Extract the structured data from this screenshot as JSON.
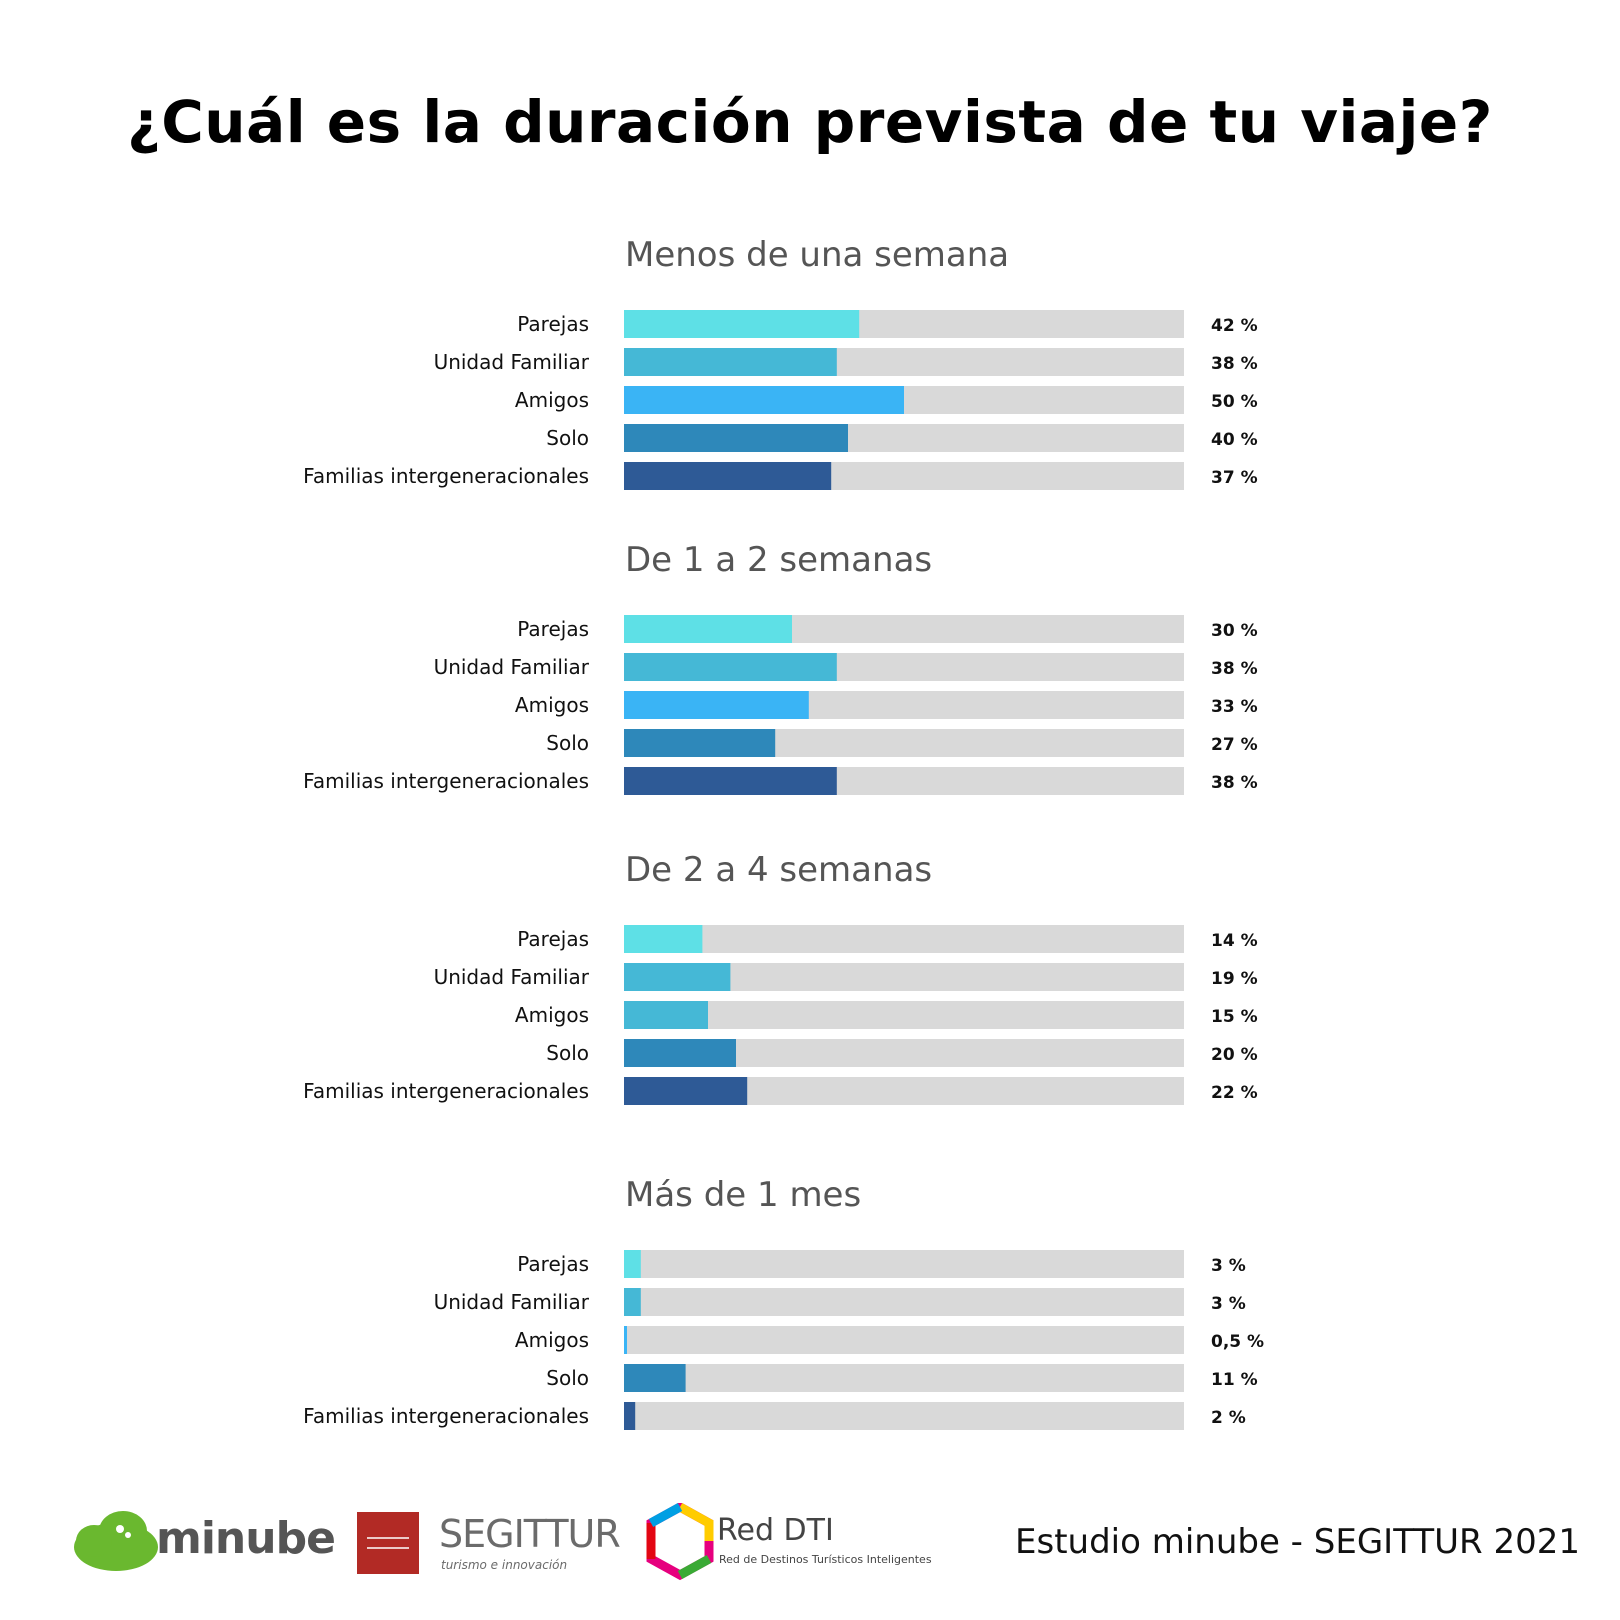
{
  "title": "¿Cuál es la duración prevista de tu viaje?",
  "colors": {
    "track": "#d9d9d9",
    "parejas": "#5ee0e6",
    "unidad_familiar": "#45b8d6",
    "amigos": "#3ab4f5",
    "solo": "#2e88ba",
    "familias": "#2e5a96",
    "section_title": "#555555"
  },
  "chart_data": {
    "type": "bar",
    "orientation": "horizontal",
    "xlim": [
      0,
      100
    ],
    "unit": "%",
    "groups": [
      {
        "name": "Menos de una semana",
        "categories": [
          "Parejas",
          "Unidad Familiar",
          "Amigos",
          "Solo",
          "Familias intergeneracionales"
        ],
        "values": [
          42,
          38,
          50,
          40,
          37
        ],
        "labels": [
          "42 %",
          "38 %",
          "50 %",
          "40 %",
          "37 %"
        ],
        "colors": [
          "#5ee0e6",
          "#45b8d6",
          "#3ab4f5",
          "#2e88ba",
          "#2e5a96"
        ]
      },
      {
        "name": "De 1 a 2 semanas",
        "categories": [
          "Parejas",
          "Unidad Familiar",
          "Amigos",
          "Solo",
          "Familias intergeneracionales"
        ],
        "values": [
          30,
          38,
          33,
          27,
          38
        ],
        "labels": [
          "30 %",
          "38 %",
          "33 %",
          "27 %",
          "38 %"
        ],
        "colors": [
          "#5ee0e6",
          "#45b8d6",
          "#3ab4f5",
          "#2e88ba",
          "#2e5a96"
        ]
      },
      {
        "name": "De 2 a 4 semanas",
        "categories": [
          "Parejas",
          "Unidad Familiar",
          "Amigos",
          "Solo",
          "Familias intergeneracionales"
        ],
        "values": [
          14,
          19,
          15,
          20,
          22
        ],
        "labels": [
          "14 %",
          "19 %",
          "15 %",
          "20 %",
          "22 %"
        ],
        "colors": [
          "#5ee0e6",
          "#45b8d6",
          "#45b8d6",
          "#2e88ba",
          "#2e5a96"
        ]
      },
      {
        "name": "Más de 1 mes",
        "categories": [
          "Parejas",
          "Unidad Familiar",
          "Amigos",
          "Solo",
          "Familias intergeneracionales"
        ],
        "values": [
          3,
          3,
          0.5,
          11,
          2
        ],
        "labels": [
          "3 %",
          "3 %",
          "0,5 %",
          "11 %",
          "2 %"
        ],
        "colors": [
          "#5ee0e6",
          "#45b8d6",
          "#3ab4f5",
          "#2e88ba",
          "#2e5a96"
        ]
      }
    ]
  },
  "footer": {
    "note": "Estudio minube - SEGITTUR 2021",
    "logos": {
      "minube": "minube",
      "segittur": "SEGITTUR",
      "segittur_sub": "turismo e innovación",
      "red_dti": "Red DTI",
      "red_dti_sub": "Red de Destinos Turísticos Inteligentes"
    }
  }
}
